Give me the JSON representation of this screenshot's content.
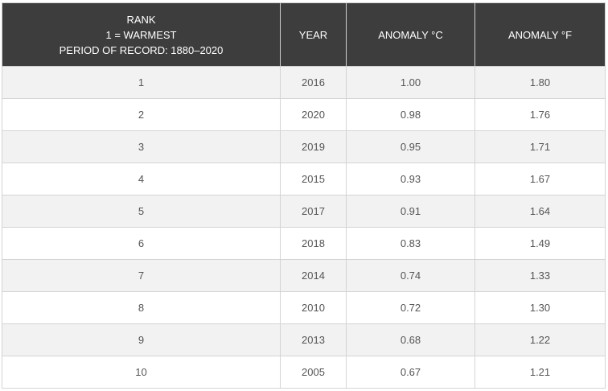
{
  "header": {
    "rank_line1": "RANK",
    "rank_line2": "1 = WARMEST",
    "rank_line3": "PERIOD OF RECORD: 1880–2020",
    "year": "YEAR",
    "anomaly_c": "ANOMALY °C",
    "anomaly_f": "ANOMALY °F"
  },
  "rows": [
    {
      "rank": "1",
      "year": "2016",
      "c": "1.00",
      "f": "1.80"
    },
    {
      "rank": "2",
      "year": "2020",
      "c": "0.98",
      "f": "1.76"
    },
    {
      "rank": "3",
      "year": "2019",
      "c": "0.95",
      "f": "1.71"
    },
    {
      "rank": "4",
      "year": "2015",
      "c": "0.93",
      "f": "1.67"
    },
    {
      "rank": "5",
      "year": "2017",
      "c": "0.91",
      "f": "1.64"
    },
    {
      "rank": "6",
      "year": "2018",
      "c": "0.83",
      "f": "1.49"
    },
    {
      "rank": "7",
      "year": "2014",
      "c": "0.74",
      "f": "1.33"
    },
    {
      "rank": "8",
      "year": "2010",
      "c": "0.72",
      "f": "1.30"
    },
    {
      "rank": "9",
      "year": "2013",
      "c": "0.68",
      "f": "1.22"
    },
    {
      "rank": "10",
      "year": "2005",
      "c": "0.67",
      "f": "1.21"
    }
  ],
  "colors": {
    "header_bg": "#3d3d3d",
    "header_text": "#ffffff",
    "row_alt_bg": "#f2f2f2",
    "row_bg": "#ffffff",
    "cell_text": "#555555",
    "border": "#d4d4d4"
  }
}
